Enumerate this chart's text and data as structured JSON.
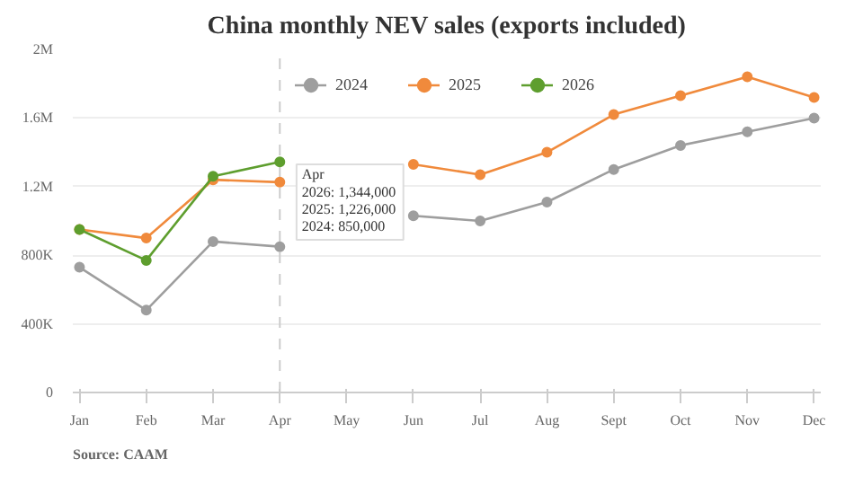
{
  "chart_data": {
    "type": "line",
    "title": "China monthly NEV sales (exports included)",
    "categories": [
      "Jan",
      "Feb",
      "Mar",
      "Apr",
      "May",
      "Jun",
      "Jul",
      "Aug",
      "Sept",
      "Oct",
      "Nov",
      "Dec"
    ],
    "series": [
      {
        "name": "2024",
        "color": "#9e9e9e",
        "values": [
          730000,
          480000,
          880000,
          850000,
          null,
          1030000,
          1000000,
          1110000,
          1300000,
          1440000,
          1520000,
          1600000
        ]
      },
      {
        "name": "2025",
        "color": "#f08a3c",
        "values": [
          950000,
          900000,
          1240000,
          1226000,
          null,
          1330000,
          1270000,
          1400000,
          1620000,
          1730000,
          1840000,
          1720000
        ]
      },
      {
        "name": "2026",
        "color": "#5e9e2e",
        "values": [
          950000,
          770000,
          1260000,
          1344000,
          null,
          null,
          null,
          null,
          null,
          null,
          null,
          null
        ]
      }
    ],
    "ylim": [
      0,
      2000000
    ],
    "yticks": [
      {
        "value": 0,
        "label": "0"
      },
      {
        "value": 400000,
        "label": "400K"
      },
      {
        "value": 800000,
        "label": "800K"
      },
      {
        "value": 1200000,
        "label": "1.2M"
      },
      {
        "value": 1600000,
        "label": "1.6M"
      },
      {
        "value": 2000000,
        "label": "2M"
      }
    ],
    "grid": "y",
    "legend": "top",
    "marker": "circle",
    "line_style": "solid",
    "ref_lines": [
      {
        "axis": "x",
        "value": "Apr",
        "label": null,
        "color": "#cccccc",
        "line_style": "dashed"
      }
    ],
    "annotations": [
      "Apr",
      "2026: 1,344,000",
      "2025: 1,226,000",
      "2024: 850,000",
      "Source: CAAM"
    ]
  }
}
